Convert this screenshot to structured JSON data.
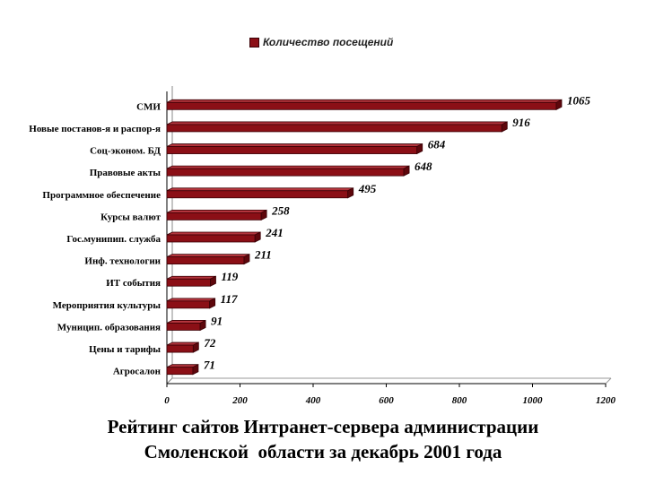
{
  "chart_data": {
    "type": "bar",
    "orientation": "horizontal",
    "categories": [
      "СМИ",
      "Новые постанов-я и распор-я",
      "Соц-эконом. БД",
      "Правовые акты",
      "Программное обеспечение",
      "Курсы валют",
      "Гос.мунипип. служба",
      "Инф. технологии",
      "ИТ события",
      "Мероприятия культуры",
      "Муницип. образования",
      "Цены и тарифы",
      "Агросалон"
    ],
    "series": [
      {
        "name": "Количество посещений",
        "values": [
          1065,
          916,
          684,
          648,
          495,
          258,
          241,
          211,
          119,
          117,
          91,
          72,
          71
        ]
      }
    ],
    "xlim": [
      0,
      1200
    ],
    "xticks": [
      "0",
      "200",
      "400",
      "600",
      "800",
      "1000",
      "1200"
    ],
    "grid": false,
    "legend_position": "top",
    "bar_color": "#8b0f16"
  },
  "legend": {
    "label": "Количество посещений"
  },
  "caption": {
    "line1": "Рейтинг сайтов Интранет-сервера администрации",
    "line2": "Смоленской  области за декабрь 2001 года"
  }
}
